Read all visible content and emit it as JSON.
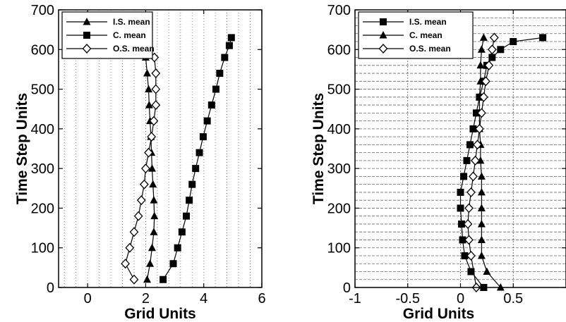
{
  "chart_data": [
    {
      "type": "line",
      "xlabel": "Grid Units",
      "ylabel": "Time Step Units",
      "xlim": [
        -1,
        6
      ],
      "ylim": [
        0,
        700
      ],
      "xticks": [
        0,
        2,
        4,
        6
      ],
      "xtick_labels": [
        "0",
        "2",
        "4",
        "6"
      ],
      "yticks": [
        0,
        100,
        200,
        300,
        400,
        500,
        600,
        700
      ],
      "ytick_labels": [
        "0",
        "100",
        "200",
        "300",
        "400",
        "500",
        "600",
        "700"
      ],
      "grid": "vertical dotted",
      "legend_position": "top-left",
      "series": [
        {
          "name": "I.S. mean",
          "marker": "triangle",
          "x": [
            2.05,
            2.15,
            2.22,
            2.28,
            2.3,
            2.28,
            2.25,
            2.22,
            2.2,
            2.18,
            2.15,
            2.12,
            2.1,
            2.05,
            2.0
          ],
          "y": [
            20,
            60,
            100,
            140,
            180,
            220,
            260,
            300,
            340,
            380,
            420,
            460,
            500,
            540,
            580
          ]
        },
        {
          "name": "C. mean",
          "marker": "square",
          "x": [
            2.6,
            2.95,
            3.1,
            3.25,
            3.4,
            3.5,
            3.6,
            3.72,
            3.85,
            3.98,
            4.12,
            4.27,
            4.42,
            4.55,
            4.72,
            4.88,
            4.95
          ],
          "y": [
            20,
            60,
            100,
            140,
            180,
            220,
            260,
            300,
            340,
            380,
            420,
            460,
            500,
            540,
            580,
            610,
            630
          ]
        },
        {
          "name": "O.S. mean",
          "marker": "diamond",
          "x": [
            1.6,
            1.3,
            1.45,
            1.6,
            1.75,
            1.85,
            1.95,
            2.0,
            2.1,
            2.2,
            2.28,
            2.35,
            2.35,
            2.35,
            2.3
          ],
          "y": [
            20,
            60,
            100,
            140,
            180,
            220,
            260,
            300,
            340,
            380,
            420,
            460,
            500,
            540,
            580
          ]
        }
      ]
    },
    {
      "type": "line",
      "xlabel": "Grid Units",
      "ylabel": "Time Step Units",
      "xlim": [
        -1,
        1
      ],
      "ylim": [
        0,
        700
      ],
      "xticks": [
        -1,
        -0.5,
        0,
        0.5
      ],
      "xtick_labels": [
        "-1",
        "-0.5",
        "0",
        "0.5"
      ],
      "yticks": [
        0,
        100,
        200,
        300,
        400,
        500,
        600,
        700
      ],
      "ytick_labels": [
        "0",
        "100",
        "200",
        "300",
        "400",
        "500",
        "600",
        "700"
      ],
      "grid": "dashed horizontal and vertical",
      "legend_position": "top-left",
      "series": [
        {
          "name": "I.S. mean",
          "marker": "square",
          "x": [
            0.22,
            0.1,
            0.04,
            0.02,
            0.01,
            0.0,
            0.0,
            0.03,
            0.06,
            0.09,
            0.12,
            0.15,
            0.18,
            0.22,
            0.25,
            0.3,
            0.38,
            0.5,
            0.78
          ],
          "y": [
            0,
            40,
            80,
            120,
            160,
            200,
            240,
            280,
            320,
            360,
            400,
            440,
            480,
            520,
            560,
            580,
            600,
            620,
            630
          ]
        },
        {
          "name": "C. mean",
          "marker": "triangle",
          "x": [
            0.38,
            0.25,
            0.2,
            0.2,
            0.2,
            0.2,
            0.2,
            0.2,
            0.19,
            0.19,
            0.18,
            0.18,
            0.18,
            0.19,
            0.19,
            0.2,
            0.22
          ],
          "y": [
            0,
            40,
            80,
            120,
            160,
            200,
            240,
            280,
            320,
            360,
            400,
            440,
            480,
            520,
            560,
            600,
            630
          ]
        },
        {
          "name": "O.S. mean",
          "marker": "diamond",
          "x": [
            0.15,
            0.1,
            0.08,
            0.07,
            0.08,
            0.1,
            0.12,
            0.14,
            0.16,
            0.18,
            0.2,
            0.22,
            0.24,
            0.27,
            0.3,
            0.32
          ],
          "y": [
            0,
            80,
            120,
            160,
            200,
            240,
            280,
            320,
            360,
            400,
            440,
            480,
            520,
            560,
            600,
            630
          ]
        }
      ]
    }
  ]
}
